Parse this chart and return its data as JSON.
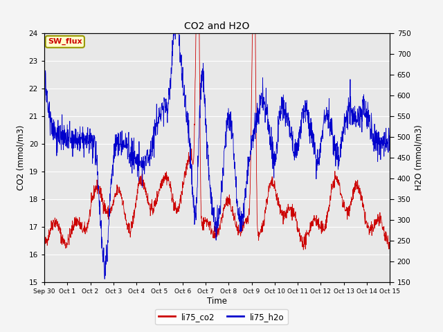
{
  "title": "CO2 and H2O",
  "xlabel": "Time",
  "ylabel_left": "CO2 (mmol/m3)",
  "ylabel_right": "H2O (mmol/m3)",
  "ylim_left": [
    15.0,
    24.0
  ],
  "ylim_right": [
    150,
    750
  ],
  "yticks_left": [
    15.0,
    16.0,
    17.0,
    18.0,
    19.0,
    20.0,
    21.0,
    22.0,
    23.0,
    24.0
  ],
  "yticks_right": [
    150,
    200,
    250,
    300,
    350,
    400,
    450,
    500,
    550,
    600,
    650,
    700,
    750
  ],
  "xtick_labels": [
    "Sep 30",
    "Oct 1",
    "Oct 2",
    "Oct 3",
    "Oct 4",
    "Oct 5",
    "Oct 6",
    "Oct 7",
    "Oct 8",
    "Oct 9",
    "Oct 10",
    "Oct 11",
    "Oct 12",
    "Oct 13",
    "Oct 14",
    "Oct 15"
  ],
  "co2_color": "#cc0000",
  "h2o_color": "#0000cc",
  "legend_label_co2": "li75_co2",
  "legend_label_h2o": "li75_h2o",
  "annotation_text": "SW_flux",
  "annotation_color": "#cc0000",
  "annotation_bg": "#ffffcc",
  "annotation_border": "#999900",
  "axes_bg": "#e8e8e8",
  "grid_color": "#ffffff",
  "seed": 42
}
